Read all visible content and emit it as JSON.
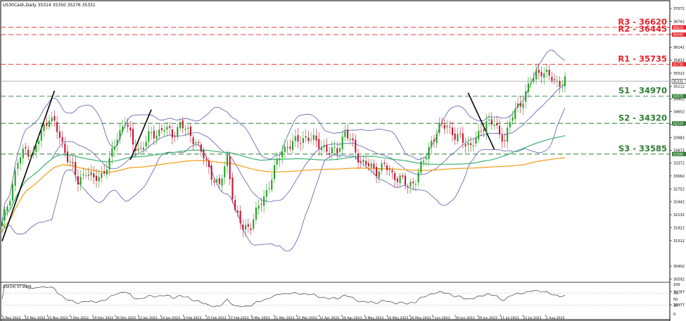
{
  "header": {
    "symbol_label": "US30Cash,Daily  35314 35350 35276 35331"
  },
  "rsi": {
    "label": "RSI(14) 57.9906",
    "ylim": [
      0,
      100
    ],
    "ticks": [
      100,
      70,
      50,
      30,
      0
    ],
    "period": 14
  },
  "levels": [
    {
      "name": "R3",
      "label": "R3 - 36620",
      "value": 36620,
      "color": "#e8212a",
      "tag": "36620"
    },
    {
      "name": "R2",
      "label": "R2 - 36445",
      "value": 36445,
      "color": "#e8212a",
      "tag": "36445"
    },
    {
      "name": "R1",
      "label": "R1 - 35735",
      "value": 35735,
      "color": "#e8212a",
      "tag": "35735"
    },
    {
      "name": "S1",
      "label": "S1 - 34970",
      "value": 34970,
      "color": "#2e7d32",
      "tag": "34970"
    },
    {
      "name": "S2",
      "label": "S2 - 34320",
      "value": 34320,
      "color": "#2e7d32",
      "tag": "34320"
    },
    {
      "name": "S3",
      "label": "S3 - 33585",
      "value": 33585,
      "color": "#2e7d32",
      "tag": "33585"
    }
  ],
  "current_price": {
    "value": 35331,
    "tag": "35331"
  },
  "colors": {
    "bull": "#1fa01f",
    "bear": "#c8102e",
    "bollinger": "#5b5bb0",
    "ma_green": "#3cb371",
    "ma_orange": "#f39c12",
    "trend": "#000000"
  },
  "chart_data": {
    "type": "candlestick",
    "instrument": "US30Cash",
    "timeframe": "Daily",
    "ylim": [
      29672,
      37072
    ],
    "y_ticks": [
      37072,
      36762,
      36452,
      36142,
      35832,
      35522,
      35212,
      34902,
      34602,
      34292,
      33982,
      33672,
      33372,
      33062,
      32752,
      32442,
      32132,
      31822,
      31512,
      30902,
      30592,
      30287,
      29977
    ],
    "x_ticks": [
      "3 Nov 2022",
      "15 Nov 2022",
      "25 Nov 2022",
      "7 Dec 2022",
      "19 Dec 2022",
      "30 Dec 2022",
      "12 Jan 2023",
      "24 Jan 2023",
      "3 Feb 2023",
      "15 Feb 2023",
      "27 Feb 2023",
      "9 Mar 2023",
      "21 Mar 2023",
      "31 Mar 2023",
      "12 Apr 2023",
      "24 Apr 2023",
      "4 May 2023",
      "16 May 2023",
      "26 May 2023",
      "7 Jun 2023",
      "19 Jun 2023",
      "29 Jun 2023",
      "11 Jul 2023",
      "21 Jul 2023",
      "2 Aug 2023"
    ],
    "close_anchors": [
      [
        0,
        31900
      ],
      [
        3,
        32600
      ],
      [
        6,
        33400
      ],
      [
        9,
        33700
      ],
      [
        12,
        33600
      ],
      [
        15,
        34100
      ],
      [
        18,
        34500
      ],
      [
        20,
        34300
      ],
      [
        23,
        33800
      ],
      [
        26,
        33400
      ],
      [
        29,
        32900
      ],
      [
        32,
        33200
      ],
      [
        35,
        32950
      ],
      [
        38,
        33100
      ],
      [
        41,
        33400
      ],
      [
        44,
        34000
      ],
      [
        47,
        34400
      ],
      [
        50,
        33800
      ],
      [
        53,
        33700
      ],
      [
        56,
        34000
      ],
      [
        59,
        34100
      ],
      [
        62,
        34200
      ],
      [
        65,
        34050
      ],
      [
        68,
        34300
      ],
      [
        71,
        34100
      ],
      [
        74,
        33900
      ],
      [
        77,
        33500
      ],
      [
        80,
        33100
      ],
      [
        83,
        32800
      ],
      [
        86,
        33500
      ],
      [
        89,
        32200
      ],
      [
        92,
        31800
      ],
      [
        95,
        31900
      ],
      [
        98,
        32300
      ],
      [
        101,
        32700
      ],
      [
        104,
        33200
      ],
      [
        107,
        33700
      ],
      [
        110,
        33800
      ],
      [
        113,
        33900
      ],
      [
        116,
        34000
      ],
      [
        119,
        33900
      ],
      [
        122,
        33800
      ],
      [
        125,
        33600
      ],
      [
        128,
        33700
      ],
      [
        131,
        34100
      ],
      [
        134,
        33800
      ],
      [
        137,
        33400
      ],
      [
        140,
        33300
      ],
      [
        143,
        33200
      ],
      [
        146,
        33300
      ],
      [
        149,
        33100
      ],
      [
        152,
        33000
      ],
      [
        155,
        32800
      ],
      [
        158,
        33000
      ],
      [
        161,
        33400
      ],
      [
        164,
        33900
      ],
      [
        167,
        34200
      ],
      [
        170,
        34300
      ],
      [
        173,
        34000
      ],
      [
        176,
        33900
      ],
      [
        179,
        33800
      ],
      [
        182,
        34000
      ],
      [
        185,
        34400
      ],
      [
        188,
        34300
      ],
      [
        190,
        34000
      ],
      [
        192,
        34000
      ],
      [
        195,
        34500
      ],
      [
        198,
        34800
      ],
      [
        201,
        35200
      ],
      [
        204,
        35500
      ],
      [
        206,
        35600
      ],
      [
        208,
        35500
      ],
      [
        211,
        35300
      ],
      [
        214,
        35331
      ]
    ]
  }
}
